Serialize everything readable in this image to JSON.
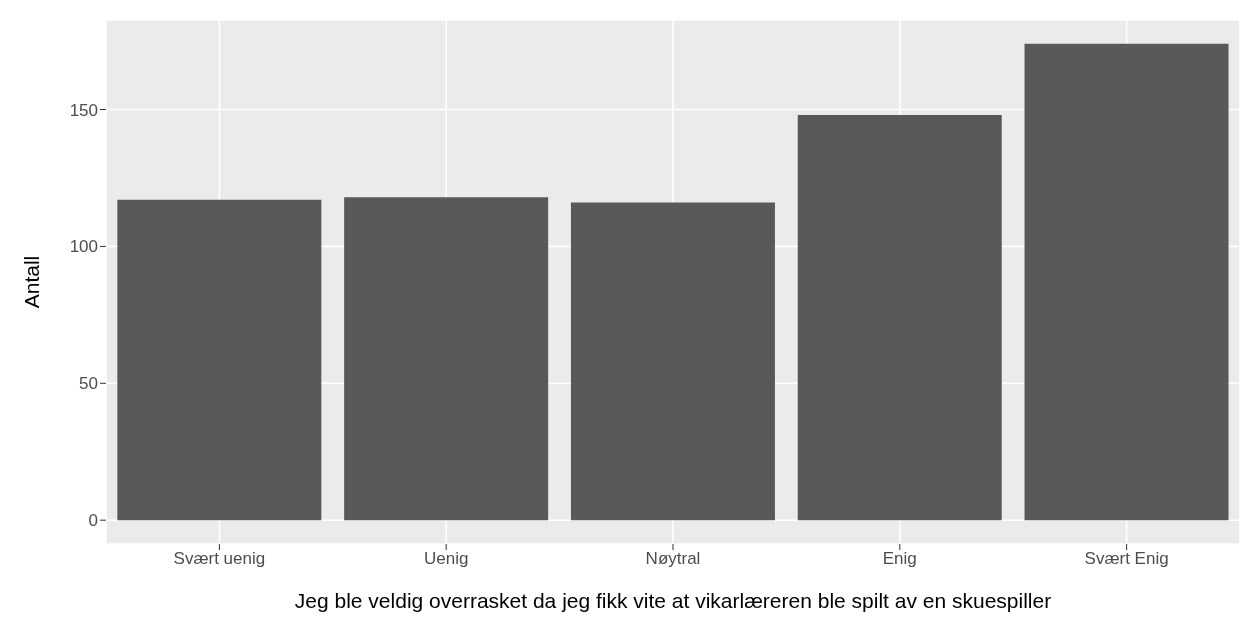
{
  "chart_data": {
    "type": "bar",
    "xlabel": "Jeg ble veldig overrasket da jeg fikk vite at vikarlæreren ble spilt av en skuespiller",
    "ylabel": "Antall",
    "categories": [
      "Svært uenig",
      "Uenig",
      "Nøytral",
      "Enig",
      "Svært Enig"
    ],
    "values": [
      117,
      118,
      116,
      148,
      174
    ],
    "color": "#595959",
    "ylim": [
      -8.7,
      182.7
    ],
    "yticks": [
      0,
      50,
      100,
      150
    ],
    "grid": true
  }
}
